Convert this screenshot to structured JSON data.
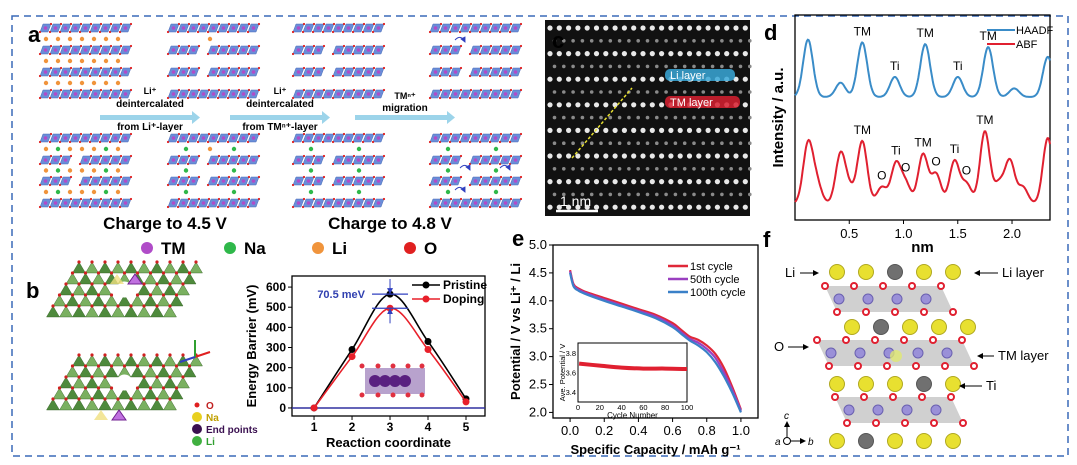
{
  "panel_labels": {
    "a": "a",
    "b": "b",
    "c": "c",
    "d": "d",
    "e": "e",
    "f": "f"
  },
  "panel_a": {
    "steps": [
      {
        "l1": "Li⁺",
        "l2": "deintercalated",
        "l3": "from Li⁺-layer"
      },
      {
        "l1": "Li⁺",
        "l2": "deintercalated",
        "l3": "from TMⁿ⁺-layer"
      },
      {
        "l1": "TMⁿ⁺",
        "l2": "migration",
        "l3": ""
      }
    ],
    "charge_1": "Charge to 4.5 V",
    "charge_2": "Charge to 4.8 V",
    "legend": [
      {
        "label": "TM",
        "color": "#b04cc8"
      },
      {
        "label": "Na",
        "color": "#2fb84a"
      },
      {
        "label": "Li",
        "color": "#f0943c"
      },
      {
        "label": "O",
        "color": "#e02020"
      }
    ]
  },
  "panel_b": {
    "legend": [
      {
        "label": "O",
        "color": "#e02020"
      },
      {
        "label": "Na",
        "color": "#e8d020"
      },
      {
        "label": "End points",
        "color": "#3a1050"
      },
      {
        "label": "Li",
        "color": "#40b040"
      }
    ]
  },
  "panel_c": {
    "li_layer": "Li layer",
    "tm_layer": "TM layer",
    "scale": "1 nm",
    "li_color": "#3aa8d8",
    "tm_color": "#d82030"
  },
  "panel_f": {
    "li": "Li",
    "li_layer": "Li layer",
    "o": "O",
    "tm_layer": "TM layer",
    "ti": "Ti",
    "axis_a": "a",
    "axis_b": "b",
    "axis_c": "c"
  },
  "chart_data": [
    {
      "id": "b",
      "type": "line",
      "xlabel": "Reaction coordinate",
      "ylabel": "Energy Barrier (mV)",
      "xlim": [
        0.42,
        5.5
      ],
      "ylim": [
        -40,
        655
      ],
      "xticks": [
        1,
        2,
        3,
        4,
        5
      ],
      "yticks": [
        0,
        100,
        200,
        300,
        400,
        500,
        600
      ],
      "x": [
        1,
        2,
        3,
        4,
        5
      ],
      "series": [
        {
          "name": "Pristine",
          "color": "#000000",
          "values": [
            0,
            290,
            565,
            330,
            45
          ]
        },
        {
          "name": "Doping",
          "color": "#e8202a",
          "values": [
            0,
            255,
            495,
            290,
            30
          ]
        }
      ],
      "annotation": "70.5 meV",
      "baseline": 0,
      "baseline_color": "#3030a0",
      "legend": "top-right"
    },
    {
      "id": "d",
      "type": "line",
      "xlabel": "nm",
      "ylabel": "Intensity / a.u.",
      "xlim": [
        0,
        2.35
      ],
      "xticks": [
        0.5,
        1.0,
        1.5,
        2.0
      ],
      "series": [
        {
          "name": "HAADF",
          "color": "#3a8cc8",
          "peaks": [
            [
              0.12,
              1.0
            ],
            [
              0.42,
              0.25
            ],
            [
              0.62,
              0.95
            ],
            [
              0.92,
              0.35
            ],
            [
              1.2,
              0.92
            ],
            [
              1.5,
              0.35
            ],
            [
              1.78,
              0.87
            ],
            [
              2.02,
              0.15
            ],
            [
              2.33,
              0.7
            ]
          ]
        },
        {
          "name": "ABF",
          "color": "#e02030",
          "peaks": [
            [
              0.12,
              0.9
            ],
            [
              0.2,
              0.3
            ],
            [
              0.42,
              0.75
            ],
            [
              0.5,
              0.2
            ],
            [
              0.62,
              0.95
            ],
            [
              0.8,
              0.25
            ],
            [
              0.93,
              0.6
            ],
            [
              1.02,
              0.3
            ],
            [
              1.18,
              0.75
            ],
            [
              1.3,
              0.45
            ],
            [
              1.47,
              0.65
            ],
            [
              1.58,
              0.3
            ],
            [
              1.75,
              1.1
            ],
            [
              1.88,
              0.3
            ],
            [
              1.98,
              0.65
            ],
            [
              2.1,
              0.25
            ],
            [
              2.33,
              1.0
            ]
          ]
        }
      ],
      "annotations": [
        {
          "text": "TM",
          "series": "HAADF",
          "x": 0.62
        },
        {
          "text": "Ti",
          "series": "HAADF",
          "x": 0.92
        },
        {
          "text": "TM",
          "series": "HAADF",
          "x": 1.2
        },
        {
          "text": "Ti",
          "series": "HAADF",
          "x": 1.5
        },
        {
          "text": "TM",
          "series": "HAADF",
          "x": 1.78
        },
        {
          "text": "TM",
          "series": "ABF",
          "x": 0.62
        },
        {
          "text": "O",
          "series": "ABF",
          "x": 0.8
        },
        {
          "text": "Ti",
          "series": "ABF",
          "x": 0.93
        },
        {
          "text": "O",
          "series": "ABF",
          "x": 1.02
        },
        {
          "text": "TM",
          "series": "ABF",
          "x": 1.18
        },
        {
          "text": "O",
          "series": "ABF",
          "x": 1.3
        },
        {
          "text": "Ti",
          "series": "ABF",
          "x": 1.47
        },
        {
          "text": "O",
          "series": "ABF",
          "x": 1.58
        },
        {
          "text": "TM",
          "series": "ABF",
          "x": 1.75
        }
      ],
      "legend": "top-right"
    },
    {
      "id": "e",
      "type": "line",
      "xlabel": "Specific Capacity / mAh g⁻¹",
      "ylabel": "Potential / V vs Li⁺ / Li",
      "xlim": [
        -0.1,
        1.1
      ],
      "ylim": [
        1.9,
        5.0
      ],
      "xticks": [
        0.0,
        0.2,
        0.4,
        0.6,
        0.8,
        1.0
      ],
      "yticks": [
        2.0,
        2.5,
        3.0,
        3.5,
        4.0,
        4.5,
        5.0
      ],
      "x": [
        0,
        0.02,
        0.05,
        0.1,
        0.2,
        0.3,
        0.4,
        0.5,
        0.6,
        0.65,
        0.7,
        0.75,
        0.8,
        0.85,
        0.9,
        0.95,
        1.0
      ],
      "series": [
        {
          "name": "1st cycle",
          "color": "#e02838",
          "values": [
            4.55,
            4.3,
            4.22,
            4.15,
            4.05,
            3.95,
            3.85,
            3.75,
            3.6,
            3.48,
            3.36,
            3.3,
            3.2,
            3.05,
            2.8,
            2.45,
            2.05
          ]
        },
        {
          "name": "50th cycle",
          "color": "#9a40c0",
          "values": [
            4.53,
            4.28,
            4.2,
            4.13,
            4.02,
            3.92,
            3.82,
            3.72,
            3.56,
            3.44,
            3.32,
            3.25,
            3.14,
            2.98,
            2.72,
            2.4,
            2.03
          ]
        },
        {
          "name": "100th cycle",
          "color": "#3a80c8",
          "values": [
            4.5,
            4.26,
            4.18,
            4.11,
            4.0,
            3.9,
            3.8,
            3.69,
            3.53,
            3.41,
            3.29,
            3.2,
            3.08,
            2.9,
            2.65,
            2.35,
            2.0
          ]
        }
      ],
      "legend": "top-right",
      "inset": {
        "xlabel": "Cycle Number",
        "ylabel": "Ave. Potential / V",
        "xlim": [
          0,
          100
        ],
        "ylim": [
          3.3,
          3.9
        ],
        "xticks": [
          0,
          20,
          40,
          60,
          80,
          100
        ],
        "yticks": [
          3.4,
          3.6,
          3.8
        ],
        "x": [
          1,
          20,
          40,
          60,
          80,
          100
        ],
        "values": [
          3.69,
          3.67,
          3.65,
          3.64,
          3.64,
          3.635
        ],
        "color": "#e02030"
      }
    }
  ]
}
